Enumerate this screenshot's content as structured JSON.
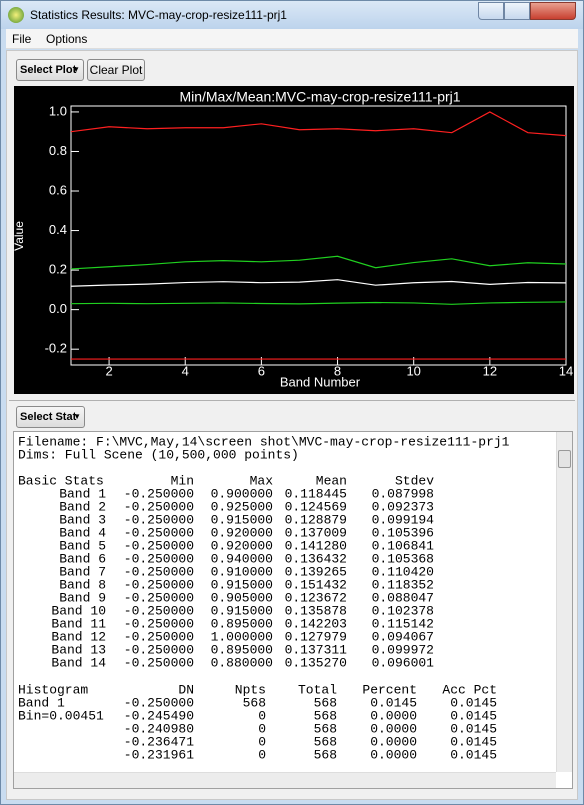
{
  "window": {
    "title": "Statistics Results: MVC-may-crop-resize111-prj1"
  },
  "menu": [
    "File",
    "Options"
  ],
  "plot_toolbar": {
    "select_plot": "Select Plot",
    "clear_plot": "Clear Plot"
  },
  "chart_data": {
    "type": "line",
    "title": "Min/Max/Mean:MVC-may-crop-resize111-prj1",
    "xlabel": "Band Number",
    "ylabel": "Value",
    "x": [
      1,
      2,
      3,
      4,
      5,
      6,
      7,
      8,
      9,
      10,
      11,
      12,
      13,
      14
    ],
    "xlim": [
      1,
      14
    ],
    "xticks": [
      2,
      4,
      6,
      8,
      10,
      12,
      14
    ],
    "ylim": [
      -0.28,
      1.03
    ],
    "yticks": [
      -0.2,
      {
        "value": 0,
        "label": "0.0"
      },
      0.2,
      0.4,
      0.6,
      0.8,
      {
        "value": 1,
        "label": "1.0"
      }
    ],
    "series": [
      {
        "color": "#ff2020",
        "values": [
          -0.25,
          -0.25,
          -0.25,
          -0.25,
          -0.25,
          -0.25,
          -0.25,
          -0.25,
          -0.25,
          -0.25,
          -0.25,
          -0.25,
          -0.25,
          -0.25
        ]
      },
      {
        "color": "#ff2020",
        "values": [
          0.9,
          0.925,
          0.915,
          0.92,
          0.92,
          0.94,
          0.91,
          0.915,
          0.905,
          0.915,
          0.895,
          1.0,
          0.895,
          0.88
        ]
      },
      {
        "color": "#ffffff",
        "values": [
          0.118445,
          0.124569,
          0.128879,
          0.137009,
          0.14128,
          0.136432,
          0.139265,
          0.151432,
          0.123672,
          0.135878,
          0.142203,
          0.127979,
          0.137311,
          0.13527
        ]
      },
      {
        "color": "#20d020",
        "values": [
          0.206,
          0.217,
          0.228,
          0.242,
          0.248,
          0.242,
          0.25,
          0.27,
          0.212,
          0.238,
          0.257,
          0.222,
          0.237,
          0.231
        ]
      },
      {
        "color": "#20d020",
        "values": [
          0.03,
          0.032,
          0.03,
          0.032,
          0.034,
          0.031,
          0.029,
          0.033,
          0.036,
          0.034,
          0.027,
          0.034,
          0.037,
          0.039
        ]
      }
    ]
  },
  "stat_toolbar": {
    "select_stat": "Select Stat"
  },
  "report": {
    "filename": "Filename:  F:\\MVC,May,14\\screen shot\\MVC-may-crop-resize111-prj1",
    "dims": "Dims: Full Scene (10,500,000 points)",
    "basic_stats": {
      "headers": [
        "Basic Stats",
        "Min",
        "Max",
        "Mean",
        "Stdev"
      ],
      "rows": [
        [
          "Band 1",
          "-0.250000",
          "0.900000",
          "0.118445",
          "0.087998"
        ],
        [
          "Band 2",
          "-0.250000",
          "0.925000",
          "0.124569",
          "0.092373"
        ],
        [
          "Band 3",
          "-0.250000",
          "0.915000",
          "0.128879",
          "0.099194"
        ],
        [
          "Band 4",
          "-0.250000",
          "0.920000",
          "0.137009",
          "0.105396"
        ],
        [
          "Band 5",
          "-0.250000",
          "0.920000",
          "0.141280",
          "0.106841"
        ],
        [
          "Band 6",
          "-0.250000",
          "0.940000",
          "0.136432",
          "0.105368"
        ],
        [
          "Band 7",
          "-0.250000",
          "0.910000",
          "0.139265",
          "0.110420"
        ],
        [
          "Band 8",
          "-0.250000",
          "0.915000",
          "0.151432",
          "0.118352"
        ],
        [
          "Band 9",
          "-0.250000",
          "0.905000",
          "0.123672",
          "0.088047"
        ],
        [
          "Band 10",
          "-0.250000",
          "0.915000",
          "0.135878",
          "0.102378"
        ],
        [
          "Band 11",
          "-0.250000",
          "0.895000",
          "0.142203",
          "0.115142"
        ],
        [
          "Band 12",
          "-0.250000",
          "1.000000",
          "0.127979",
          "0.094067"
        ],
        [
          "Band 13",
          "-0.250000",
          "0.895000",
          "0.137311",
          "0.099972"
        ],
        [
          "Band 14",
          "-0.250000",
          "0.880000",
          "0.135270",
          "0.096001"
        ]
      ]
    },
    "histogram": {
      "headers": [
        "Histogram",
        "DN",
        "Npts",
        "Total",
        "Percent",
        "Acc Pct"
      ],
      "rows": [
        [
          "Band 1",
          "-0.250000",
          "568",
          "568",
          "0.0145",
          "0.0145"
        ],
        [
          "Bin=0.00451",
          "-0.245490",
          "0",
          "568",
          "0.0000",
          "0.0145"
        ],
        [
          null,
          "-0.240980",
          "0",
          "568",
          "0.0000",
          "0.0145"
        ],
        [
          null,
          "-0.236471",
          "0",
          "568",
          "0.0000",
          "0.0145"
        ],
        [
          null,
          "-0.231961",
          "0",
          "568",
          "0.0000",
          "0.0145"
        ]
      ]
    }
  }
}
